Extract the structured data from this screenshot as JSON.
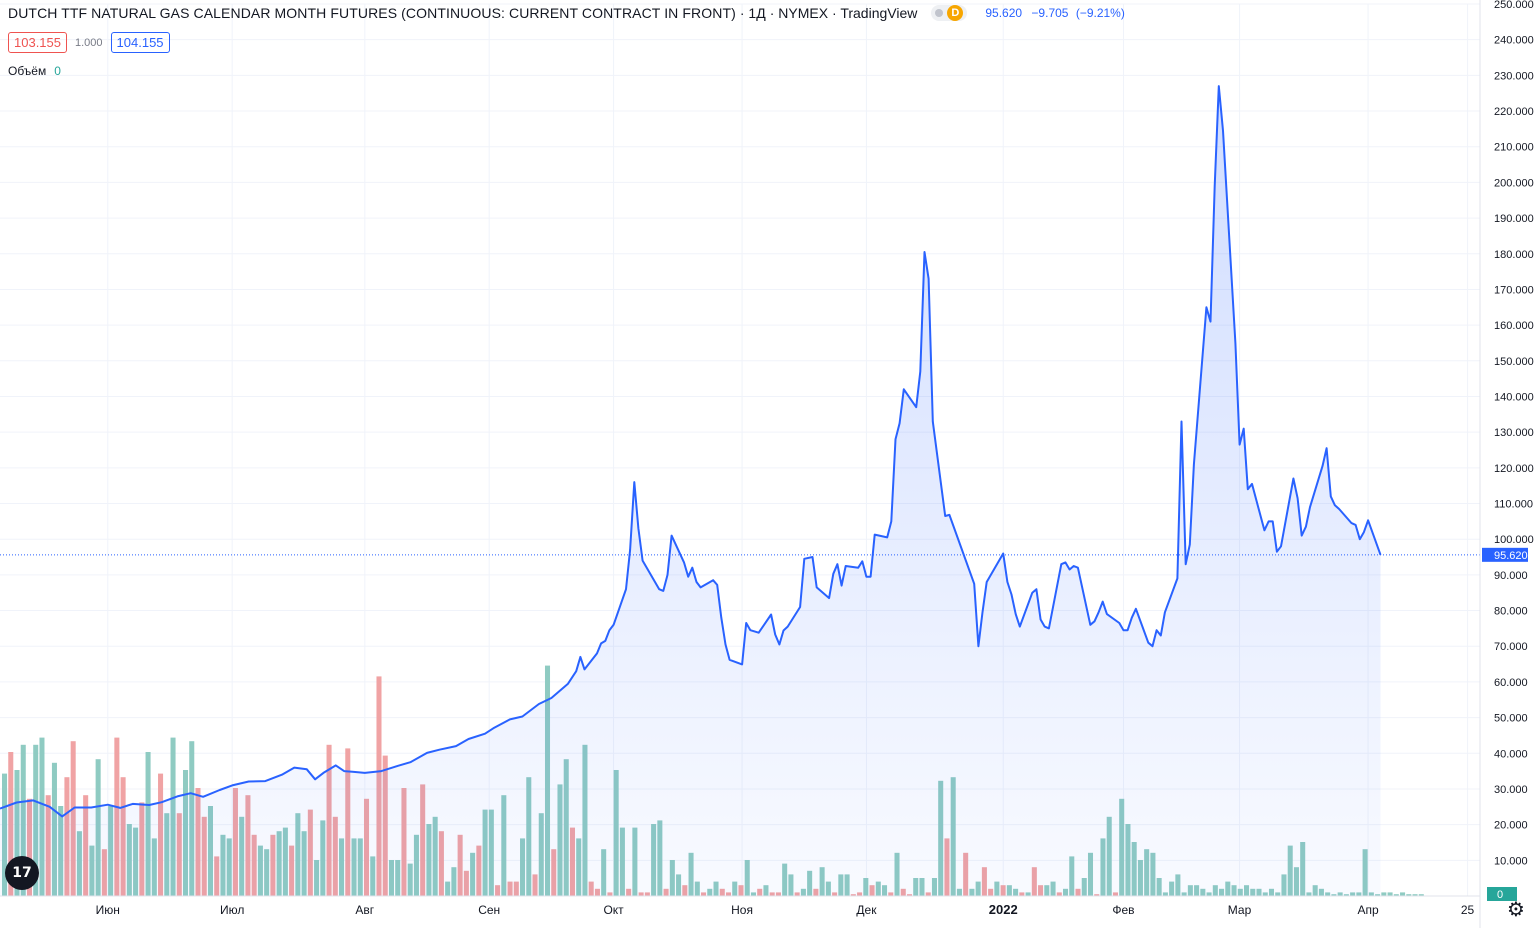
{
  "header": {
    "title": "DUTCH TTF NATURAL GAS CALENDAR MONTH FUTURES (CONTINUOUS: CURRENT CONTRACT IN FRONT)",
    "interval": "· 1Д",
    "exchange": "· NYMEX",
    "source": "· TradingView",
    "interval_badge": "D",
    "last_price": "95.620",
    "change": "−9.705",
    "change_pct": "(−9.21%)"
  },
  "quote": {
    "bid": "103.155",
    "ratio": "1.000",
    "ask": "104.155"
  },
  "volume_legend": {
    "label": "Объём",
    "value": "0"
  },
  "logo_text": "17",
  "colors": {
    "line": "#2962ff",
    "vol_up": "#8fcbc2",
    "vol_down": "#f0a3a4",
    "axis_text": "#131722",
    "grid": "#f0f3fa"
  },
  "chart_data": {
    "type": "area",
    "title": "DUTCH TTF NATURAL GAS CALENDAR MONTH FUTURES (CONTINUOUS: CURRENT CONTRACT IN FRONT)",
    "xlabel": "",
    "ylabel": "",
    "ylim": [
      0,
      250
    ],
    "y_ticks": [
      "250.000",
      "240.000",
      "230.000",
      "220.000",
      "210.000",
      "200.000",
      "190.000",
      "180.000",
      "170.000",
      "160.000",
      "150.000",
      "140.000",
      "130.000",
      "120.000",
      "110.000",
      "100.000",
      "90.000",
      "80.000",
      "70.000",
      "60.000",
      "50.000",
      "40.000",
      "30.000",
      "20.000",
      "10.000"
    ],
    "y_tick_values": [
      250,
      240,
      230,
      220,
      210,
      200,
      190,
      180,
      170,
      160,
      150,
      140,
      130,
      120,
      110,
      100,
      90,
      80,
      70,
      60,
      50,
      40,
      30,
      20,
      10
    ],
    "x_range": [
      "2021-05-06",
      "2022-04-28"
    ],
    "x_ticks": [
      {
        "label": "Июн",
        "date": "2021-06-01"
      },
      {
        "label": "Июл",
        "date": "2021-07-01"
      },
      {
        "label": "Авг",
        "date": "2021-08-02"
      },
      {
        "label": "Сен",
        "date": "2021-09-01"
      },
      {
        "label": "Окт",
        "date": "2021-10-01"
      },
      {
        "label": "Ноя",
        "date": "2021-11-01"
      },
      {
        "label": "Дек",
        "date": "2021-12-01"
      },
      {
        "label": "2022",
        "date": "2022-01-03"
      },
      {
        "label": "Фев",
        "date": "2022-02-01"
      },
      {
        "label": "Мар",
        "date": "2022-03-01"
      },
      {
        "label": "Апр",
        "date": "2022-04-01"
      },
      {
        "label": "25",
        "date": "2022-04-25"
      }
    ],
    "last_price_label": "95.620",
    "last_price": 95.62,
    "volume_axis_label": "0",
    "series": [
      {
        "name": "",
        "points": [
          [
            "2021-05-06",
            24.5
          ],
          [
            "2021-05-10",
            26.2
          ],
          [
            "2021-05-14",
            26.8
          ],
          [
            "2021-05-18",
            25.0
          ],
          [
            "2021-05-21",
            22.3
          ],
          [
            "2021-05-24",
            24.8
          ],
          [
            "2021-05-28",
            24.8
          ],
          [
            "2021-06-01",
            25.6
          ],
          [
            "2021-06-04",
            24.7
          ],
          [
            "2021-06-07",
            25.8
          ],
          [
            "2021-06-11",
            25.5
          ],
          [
            "2021-06-14",
            26.3
          ],
          [
            "2021-06-18",
            28.0
          ],
          [
            "2021-06-21",
            28.8
          ],
          [
            "2021-06-24",
            27.8
          ],
          [
            "2021-06-28",
            29.7
          ],
          [
            "2021-07-01",
            31.0
          ],
          [
            "2021-07-05",
            32.1
          ],
          [
            "2021-07-09",
            32.2
          ],
          [
            "2021-07-13",
            34.0
          ],
          [
            "2021-07-16",
            36.0
          ],
          [
            "2021-07-19",
            35.5
          ],
          [
            "2021-07-21",
            32.7
          ],
          [
            "2021-07-23",
            34.5
          ],
          [
            "2021-07-26",
            36.6
          ],
          [
            "2021-07-28",
            35.0
          ],
          [
            "2021-07-30",
            34.8
          ],
          [
            "2021-08-02",
            34.5
          ],
          [
            "2021-08-06",
            35.0
          ],
          [
            "2021-08-10",
            36.5
          ],
          [
            "2021-08-13",
            37.5
          ],
          [
            "2021-08-17",
            40.1
          ],
          [
            "2021-08-20",
            41.0
          ],
          [
            "2021-08-24",
            42.0
          ],
          [
            "2021-08-27",
            44.0
          ],
          [
            "2021-08-31",
            45.5
          ],
          [
            "2021-09-02",
            47.0
          ],
          [
            "2021-09-06",
            49.5
          ],
          [
            "2021-09-09",
            50.3
          ],
          [
            "2021-09-13",
            53.8
          ],
          [
            "2021-09-16",
            55.5
          ],
          [
            "2021-09-20",
            59.5
          ],
          [
            "2021-09-22",
            63.0
          ],
          [
            "2021-09-23",
            67.0
          ],
          [
            "2021-09-24",
            63.5
          ],
          [
            "2021-09-27",
            68.0
          ],
          [
            "2021-09-28",
            70.8
          ],
          [
            "2021-09-29",
            71.5
          ],
          [
            "2021-09-30",
            74.5
          ],
          [
            "2021-10-01",
            76.0
          ],
          [
            "2021-10-04",
            86.0
          ],
          [
            "2021-10-05",
            97.0
          ],
          [
            "2021-10-06",
            116.0
          ],
          [
            "2021-10-07",
            103.0
          ],
          [
            "2021-10-08",
            94.0
          ],
          [
            "2021-10-11",
            88.0
          ],
          [
            "2021-10-12",
            86.0
          ],
          [
            "2021-10-13",
            85.5
          ],
          [
            "2021-10-14",
            90.0
          ],
          [
            "2021-10-15",
            101.0
          ],
          [
            "2021-10-18",
            93.5
          ],
          [
            "2021-10-19",
            89.5
          ],
          [
            "2021-10-20",
            92.0
          ],
          [
            "2021-10-21",
            88.0
          ],
          [
            "2021-10-22",
            86.5
          ],
          [
            "2021-10-25",
            88.5
          ],
          [
            "2021-10-26",
            87.2
          ],
          [
            "2021-10-27",
            78.0
          ],
          [
            "2021-10-28",
            70.5
          ],
          [
            "2021-10-29",
            66.2
          ],
          [
            "2021-11-01",
            64.9
          ],
          [
            "2021-11-02",
            76.5
          ],
          [
            "2021-11-03",
            74.5
          ],
          [
            "2021-11-05",
            73.8
          ],
          [
            "2021-11-08",
            78.9
          ],
          [
            "2021-11-09",
            73.3
          ],
          [
            "2021-11-10",
            70.5
          ],
          [
            "2021-11-11",
            74.4
          ],
          [
            "2021-11-12",
            75.5
          ],
          [
            "2021-11-15",
            81.0
          ],
          [
            "2021-11-16",
            94.5
          ],
          [
            "2021-11-18",
            95.0
          ],
          [
            "2021-11-19",
            86.5
          ],
          [
            "2021-11-22",
            83.5
          ],
          [
            "2021-11-23",
            90.3
          ],
          [
            "2021-11-24",
            93.0
          ],
          [
            "2021-11-25",
            87.0
          ],
          [
            "2021-11-26",
            92.5
          ],
          [
            "2021-11-29",
            92.0
          ],
          [
            "2021-11-30",
            93.8
          ],
          [
            "2021-12-01",
            89.5
          ],
          [
            "2021-12-02",
            89.5
          ],
          [
            "2021-12-03",
            101.3
          ],
          [
            "2021-12-06",
            100.5
          ],
          [
            "2021-12-07",
            105.0
          ],
          [
            "2021-12-08",
            128.0
          ],
          [
            "2021-12-09",
            132.5
          ],
          [
            "2021-12-10",
            142.0
          ],
          [
            "2021-12-13",
            137.0
          ],
          [
            "2021-12-14",
            147.0
          ],
          [
            "2021-12-15",
            180.5
          ],
          [
            "2021-12-16",
            173.0
          ],
          [
            "2021-12-17",
            133.0
          ],
          [
            "2021-12-20",
            106.5
          ],
          [
            "2021-12-21",
            106.8
          ],
          [
            "2021-12-27",
            87.5
          ],
          [
            "2021-12-28",
            70.0
          ],
          [
            "2021-12-29",
            79.5
          ],
          [
            "2021-12-30",
            88.0
          ],
          [
            "2022-01-03",
            96.0
          ],
          [
            "2022-01-04",
            88.0
          ],
          [
            "2022-01-05",
            84.5
          ],
          [
            "2022-01-06",
            79.0
          ],
          [
            "2022-01-07",
            75.5
          ],
          [
            "2022-01-10",
            85.0
          ],
          [
            "2022-01-11",
            86.0
          ],
          [
            "2022-01-12",
            77.5
          ],
          [
            "2022-01-13",
            75.5
          ],
          [
            "2022-01-14",
            75.0
          ],
          [
            "2022-01-17",
            93.0
          ],
          [
            "2022-01-18",
            93.5
          ],
          [
            "2022-01-19",
            91.5
          ],
          [
            "2022-01-20",
            92.5
          ],
          [
            "2022-01-21",
            92.0
          ],
          [
            "2022-01-24",
            76.0
          ],
          [
            "2022-01-25",
            77.0
          ],
          [
            "2022-01-26",
            79.5
          ],
          [
            "2022-01-27",
            82.5
          ],
          [
            "2022-01-28",
            79.0
          ],
          [
            "2022-01-31",
            76.5
          ],
          [
            "2022-02-01",
            74.5
          ],
          [
            "2022-02-02",
            74.5
          ],
          [
            "2022-02-03",
            78.0
          ],
          [
            "2022-02-04",
            80.5
          ],
          [
            "2022-02-07",
            71.0
          ],
          [
            "2022-02-08",
            70.0
          ],
          [
            "2022-02-09",
            74.5
          ],
          [
            "2022-02-10",
            73.0
          ],
          [
            "2022-02-11",
            79.5
          ],
          [
            "2022-02-14",
            89.0
          ],
          [
            "2022-02-15",
            133.0
          ],
          [
            "2022-02-16",
            93.0
          ],
          [
            "2022-02-17",
            98.5
          ],
          [
            "2022-02-18",
            121.0
          ],
          [
            "2022-02-21",
            165.0
          ],
          [
            "2022-02-22",
            161.0
          ],
          [
            "2022-02-23",
            199.0
          ],
          [
            "2022-02-24",
            227.0
          ],
          [
            "2022-02-25",
            214.5
          ],
          [
            "2022-02-28",
            155.0
          ],
          [
            "2022-03-01",
            126.5
          ],
          [
            "2022-03-02",
            131.0
          ],
          [
            "2022-03-03",
            114.0
          ],
          [
            "2022-03-04",
            115.5
          ],
          [
            "2022-03-07",
            102.5
          ],
          [
            "2022-03-08",
            105.0
          ],
          [
            "2022-03-09",
            105.0
          ],
          [
            "2022-03-10",
            96.5
          ],
          [
            "2022-03-11",
            98.0
          ],
          [
            "2022-03-14",
            117.0
          ],
          [
            "2022-03-15",
            111.5
          ],
          [
            "2022-03-16",
            101.0
          ],
          [
            "2022-03-17",
            103.5
          ],
          [
            "2022-03-18",
            109.0
          ],
          [
            "2022-03-21",
            120.5
          ],
          [
            "2022-03-22",
            125.5
          ],
          [
            "2022-03-23",
            112.0
          ],
          [
            "2022-03-24",
            109.5
          ],
          [
            "2022-03-25",
            108.5
          ],
          [
            "2022-03-28",
            104.5
          ],
          [
            "2022-03-29",
            104.0
          ],
          [
            "2022-03-30",
            100.0
          ],
          [
            "2022-03-31",
            102.0
          ],
          [
            "2022-04-01",
            105.3
          ],
          [
            "2022-04-04",
            95.62
          ]
        ]
      },
      {
        "name": "Объём",
        "up_values": [
          34,
          35,
          42,
          42,
          44,
          37,
          25,
          18,
          14,
          38,
          25,
          20,
          19,
          40,
          16,
          23,
          44,
          35,
          43,
          25,
          17,
          16,
          22,
          14,
          13,
          18,
          19,
          23,
          18,
          10,
          21,
          16,
          16,
          16,
          11,
          10,
          10,
          9,
          17,
          20,
          22,
          4,
          8,
          12,
          24,
          24,
          28,
          16,
          33,
          23,
          64,
          31,
          38,
          16,
          42,
          13,
          35,
          19,
          19,
          20,
          21,
          10,
          6,
          12,
          4,
          2,
          4,
          4,
          10,
          1,
          3,
          9,
          6,
          2,
          7,
          8,
          4,
          6,
          6,
          5,
          4,
          3,
          12,
          5,
          5,
          5,
          32,
          33,
          2,
          2,
          4,
          4,
          3,
          2,
          1,
          3,
          4,
          2,
          11,
          5,
          12,
          16,
          22,
          27,
          20,
          15,
          10,
          13,
          12,
          5,
          1,
          4,
          6,
          1,
          3,
          3,
          2,
          1,
          3,
          2,
          4,
          3,
          2,
          3,
          2,
          2,
          1,
          2,
          1,
          6,
          14,
          8,
          15,
          1,
          3,
          2,
          1,
          0.5,
          1,
          0.5,
          1,
          1,
          13,
          1,
          0.5,
          1,
          1,
          0.5,
          1,
          0.5,
          0.5,
          0.5
        ],
        "down_values": [
          40,
          27,
          28,
          33,
          43,
          28,
          13,
          44,
          33,
          26,
          34,
          23,
          30,
          22,
          11,
          30,
          28,
          17,
          17,
          14,
          24,
          42,
          22,
          41,
          27,
          61,
          39,
          30,
          31,
          18,
          17,
          7,
          14,
          3,
          4,
          4,
          6,
          13,
          19,
          4,
          2,
          1,
          2,
          1,
          1,
          2,
          3,
          1,
          2,
          1,
          3,
          2,
          1,
          1,
          1,
          2,
          1,
          0.5,
          1,
          3,
          1,
          2,
          0.5,
          1,
          16,
          12,
          8,
          2,
          3,
          1,
          8,
          3,
          1,
          2,
          0.5,
          1
        ]
      }
    ]
  }
}
